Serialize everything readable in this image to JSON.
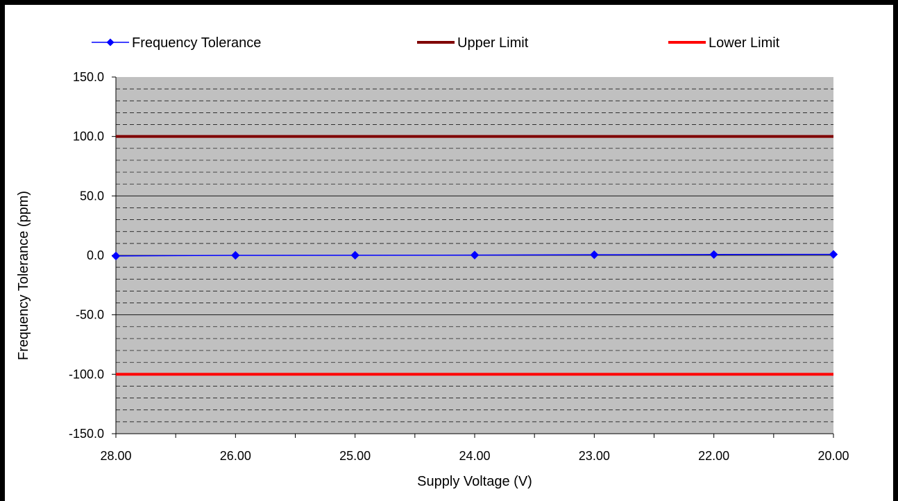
{
  "chart_data": {
    "type": "line",
    "xlabel": "Supply Voltage (V)",
    "ylabel": "Frequency Tolerance (ppm)",
    "categories": [
      "28.00",
      "26.00",
      "25.00",
      "24.00",
      "23.00",
      "22.00",
      "20.00"
    ],
    "ylim": [
      -150,
      150
    ],
    "y_ticks": [
      "150.0",
      "100.0",
      "50.0",
      "0.0",
      "-50.0",
      "-100.0",
      "-150.0"
    ],
    "y_major_step": 50,
    "y_minor_step": 10,
    "grid": true,
    "legend_position": "top",
    "plot_background": "#c0c0c0",
    "series": [
      {
        "name": "Frequency Tolerance",
        "values": [
          -0.5,
          0.0,
          0.1,
          0.2,
          0.5,
          0.7,
          0.8
        ],
        "color": "#0000ff",
        "marker": "diamond",
        "style": "line-marker"
      },
      {
        "name": "Upper Limit",
        "values": [
          100,
          100,
          100,
          100,
          100,
          100,
          100
        ],
        "color": "#800000",
        "marker": "none",
        "style": "line"
      },
      {
        "name": "Lower Limit",
        "values": [
          -100,
          -100,
          -100,
          -100,
          -100,
          -100,
          -100
        ],
        "color": "#ff0000",
        "marker": "none",
        "style": "line"
      }
    ]
  }
}
